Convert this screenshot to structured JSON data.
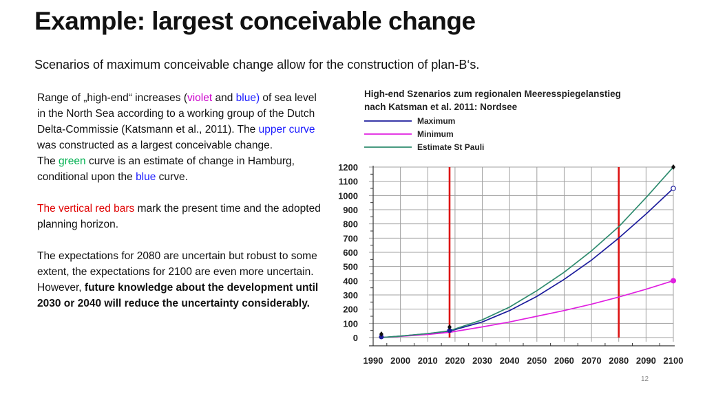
{
  "slide": {
    "title": "Example: largest conceivable change",
    "subtitle": "Scenarios of maximum conceivable change allow for the construction of plan-B‘s.",
    "page_number": "12"
  },
  "body": {
    "p1_a": "Range of „high-end“ increases (",
    "p1_violet": "violet",
    "p1_b": " and  ",
    "p1_blue": "blue)",
    "p1_c": " of sea level in the North Sea according to a working group of the Dutch Delta-Commissie (Katsmann et al., 2011).  The  ",
    "p1_upper": "upper curve",
    "p1_d": "  was constructed as a largest conceivable change.",
    "p2_a": "The  ",
    "p2_green": "green",
    "p2_b": "  curve is an estimate of change in Hamburg, conditional upon the  ",
    "p2_blue": "blue",
    "p2_c": "  curve.",
    "p3_red": "The vertical red bars",
    "p3_b": " mark the present time and the adopted planning horizon.",
    "p4_a": "The expectations for 2080 are uncertain but robust to some extent, the expectations for 2100 are  even more uncertain. However,  ",
    "p4_bold": "future knowledge about the development until 2030 or 2040 will reduce the uncertainty  considerably."
  },
  "colors": {
    "maximum": "#1c1c9c",
    "minimum": "#e020e0",
    "estimate": "#2e8b6e",
    "red_bar": "#dd1111",
    "grid": "#a0a0a0"
  },
  "chart_data": {
    "type": "line",
    "title": "High-end Szenarios zum regionalen Meeresspiegelanstieg nach Katsman et al. 2011: Nordsee",
    "xlim": [
      1990,
      2100
    ],
    "ylim": [
      0,
      1200
    ],
    "x_ticks": [
      1990,
      2000,
      2010,
      2020,
      2030,
      2040,
      2050,
      2060,
      2070,
      2080,
      2090,
      2100
    ],
    "y_ticks": [
      0,
      100,
      200,
      300,
      400,
      500,
      600,
      700,
      800,
      900,
      1000,
      1100,
      1200
    ],
    "grid": true,
    "legend_position": "top-left",
    "series": [
      {
        "name": "Maximum",
        "color": "#1c1c9c",
        "x": [
          1993,
          2000,
          2010,
          2018,
          2030,
          2040,
          2050,
          2060,
          2070,
          2080,
          2090,
          2100
        ],
        "y": [
          0,
          10,
          27,
          45,
          110,
          190,
          290,
          410,
          545,
          700,
          870,
          1050
        ]
      },
      {
        "name": "Minimum",
        "color": "#e020e0",
        "x": [
          1993,
          2000,
          2010,
          2018,
          2030,
          2040,
          2050,
          2060,
          2070,
          2080,
          2090,
          2100
        ],
        "y": [
          0,
          8,
          22,
          37,
          75,
          110,
          150,
          190,
          235,
          285,
          340,
          400
        ]
      },
      {
        "name": "Estimate St Pauli",
        "color": "#2e8b6e",
        "x": [
          1993,
          2000,
          2010,
          2018,
          2030,
          2040,
          2050,
          2060,
          2070,
          2080,
          2090,
          2100
        ],
        "y": [
          0,
          10,
          28,
          48,
          125,
          215,
          330,
          460,
          610,
          780,
          985,
          1200
        ]
      }
    ],
    "vertical_bars": [
      2018,
      2080
    ]
  }
}
